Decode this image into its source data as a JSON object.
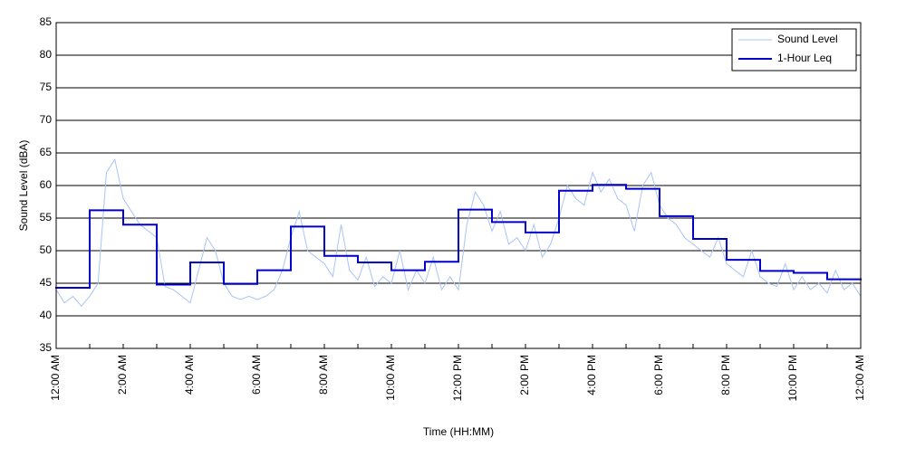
{
  "chart_data": {
    "type": "line",
    "y_label": "Sound Level (dBA)",
    "x_label": "Time (HH:MM)",
    "xlim": [
      0,
      24
    ],
    "ylim": [
      35,
      85
    ],
    "yticks": [
      35,
      40,
      45,
      50,
      55,
      60,
      65,
      70,
      75,
      80,
      85
    ],
    "xticks": [
      {
        "value": 0,
        "label": "12:00 AM"
      },
      {
        "value": 2,
        "label": "2:00 AM"
      },
      {
        "value": 4,
        "label": "4:00 AM"
      },
      {
        "value": 6,
        "label": "6:00 AM"
      },
      {
        "value": 8,
        "label": "8:00 AM"
      },
      {
        "value": 10,
        "label": "10:00 AM"
      },
      {
        "value": 12,
        "label": "12:00 PM"
      },
      {
        "value": 14,
        "label": "2:00 PM"
      },
      {
        "value": 16,
        "label": "4:00 PM"
      },
      {
        "value": 18,
        "label": "6:00 PM"
      },
      {
        "value": 20,
        "label": "8:00 PM"
      },
      {
        "value": 22,
        "label": "10:00 PM"
      },
      {
        "value": 24,
        "label": "12:00 AM"
      }
    ],
    "xminorticks": [
      1,
      3,
      5,
      7,
      9,
      11,
      13,
      15,
      17,
      19,
      21,
      23
    ],
    "grid": true,
    "legend": "upper right",
    "series": [
      {
        "name": "Sound Level",
        "color": "#a9c4f5",
        "step": false,
        "x": [
          0,
          0.25,
          0.5,
          0.75,
          1,
          1.25,
          1.5,
          1.75,
          2,
          2.25,
          2.5,
          2.75,
          3,
          3.25,
          3.5,
          3.75,
          4,
          4.25,
          4.5,
          4.75,
          5,
          5.25,
          5.5,
          5.75,
          6,
          6.25,
          6.5,
          6.75,
          7,
          7.25,
          7.5,
          7.75,
          8,
          8.25,
          8.5,
          8.75,
          9,
          9.25,
          9.5,
          9.75,
          10,
          10.25,
          10.5,
          10.75,
          11,
          11.25,
          11.5,
          11.75,
          12,
          12.25,
          12.5,
          12.75,
          13,
          13.25,
          13.5,
          13.75,
          14,
          14.25,
          14.5,
          14.75,
          15,
          15.25,
          15.5,
          15.75,
          16,
          16.25,
          16.5,
          16.75,
          17,
          17.25,
          17.5,
          17.75,
          18,
          18.25,
          18.5,
          18.75,
          19,
          19.25,
          19.5,
          19.75,
          20,
          20.25,
          20.5,
          20.75,
          21,
          21.25,
          21.5,
          21.75,
          22,
          22.25,
          22.5,
          22.75,
          23,
          23.25,
          23.5,
          23.75,
          24
        ],
        "values": [
          44,
          42,
          43,
          41.5,
          43,
          45,
          62,
          64,
          58,
          56,
          54,
          53,
          52,
          44.5,
          44,
          43,
          42,
          47,
          52,
          50,
          45,
          43,
          42.5,
          43,
          42.5,
          43,
          44,
          47,
          52,
          56,
          50,
          49,
          48,
          46,
          54,
          47,
          45.5,
          49,
          44.5,
          46,
          45,
          50,
          44,
          47,
          45,
          49,
          44,
          46,
          44,
          54,
          59,
          57,
          53,
          56,
          51,
          52,
          50,
          54,
          49,
          51,
          55,
          60,
          58,
          57,
          62,
          59,
          61,
          58,
          57,
          53,
          60,
          62,
          57,
          55,
          54,
          52,
          51,
          50,
          49,
          52,
          48,
          47,
          46,
          50,
          46,
          45,
          44.5,
          48,
          44,
          46,
          44,
          45,
          43.5,
          47,
          44,
          45,
          43
        ]
      },
      {
        "name": "1-Hour Leq",
        "color": "#0000cc",
        "step": true,
        "x": [
          0,
          1,
          2,
          3,
          4,
          5,
          6,
          7,
          8,
          9,
          10,
          11,
          12,
          13,
          14,
          15,
          16,
          17,
          18,
          19,
          20,
          21,
          22,
          23
        ],
        "values": [
          44.3,
          56.2,
          54.0,
          44.8,
          48.2,
          44.9,
          47.0,
          53.7,
          49.2,
          48.2,
          47.0,
          48.3,
          56.3,
          54.4,
          52.8,
          59.2,
          60.1,
          59.5,
          55.3,
          51.8,
          48.6,
          46.9,
          46.6,
          45.6
        ]
      }
    ]
  }
}
